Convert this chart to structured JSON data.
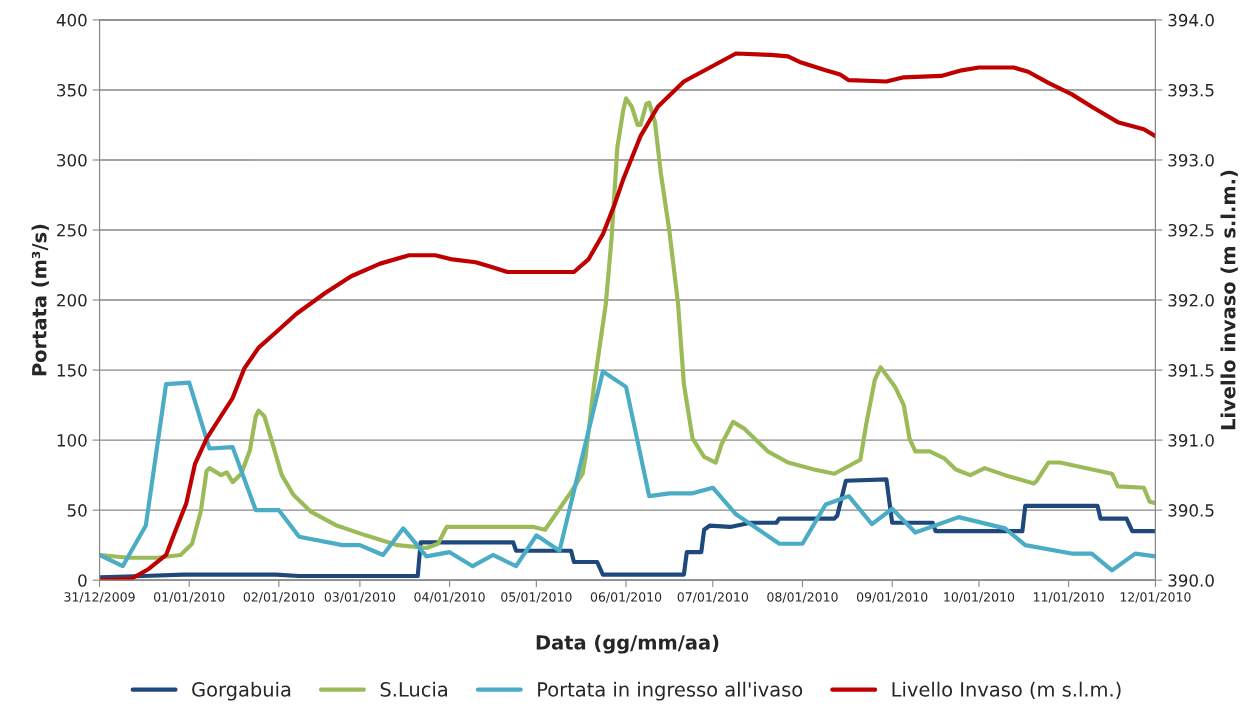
{
  "chart_data": {
    "type": "line",
    "xlabel": "Data (gg/mm/aa)",
    "ylabel": "Portata (m³/s)",
    "y2label": "Livello invaso (m s.l.m.)",
    "xlim": [
      "2009-12-01",
      "2010-12-01"
    ],
    "xticks": [
      {
        "value": "2009-12-01",
        "label": "31/12/2009"
      },
      {
        "value": "2010-01-01",
        "label": "01/01/2010"
      },
      {
        "value": "2010-02-01",
        "label": "02/01/2010"
      },
      {
        "value": "2010-03-01",
        "label": "03/01/2010"
      },
      {
        "value": "2010-04-01",
        "label": "04/01/2010"
      },
      {
        "value": "2010-05-01",
        "label": "05/01/2010"
      },
      {
        "value": "2010-06-01",
        "label": "06/01/2010"
      },
      {
        "value": "2010-07-01",
        "label": "07/01/2010"
      },
      {
        "value": "2010-08-01",
        "label": "08/01/2010"
      },
      {
        "value": "2010-09-01",
        "label": "09/01/2010"
      },
      {
        "value": "2010-10-01",
        "label": "10/01/2010"
      },
      {
        "value": "2010-11-01",
        "label": "11/01/2010"
      },
      {
        "value": "2010-12-01",
        "label": "12/01/2010"
      }
    ],
    "ylim": [
      0,
      400
    ],
    "yticks": [
      0,
      50,
      100,
      150,
      200,
      250,
      300,
      350,
      400
    ],
    "y2lim": [
      390,
      394
    ],
    "y2ticks": [
      {
        "value": 390,
        "label": "390.0"
      },
      {
        "value": 390.5,
        "label": "390.5"
      },
      {
        "value": 391,
        "label": "391.0"
      },
      {
        "value": 391.5,
        "label": "391.5"
      },
      {
        "value": 392,
        "label": "392.0"
      },
      {
        "value": 392.5,
        "label": "392.5"
      },
      {
        "value": 393,
        "label": "393.0"
      },
      {
        "value": 393.5,
        "label": "393.5"
      },
      {
        "value": 394,
        "label": "394.0"
      }
    ],
    "grid": "y",
    "legend": "bottom",
    "marker": "none",
    "line_style": "solid",
    "series": [
      {
        "name": "Gorgabuia",
        "color": "#1f497d",
        "x": [
          "2009-12-01",
          "2009-12-16",
          "2009-12-30",
          "2010-01-31",
          "2010-02-08",
          "2010-03-21",
          "2010-03-22",
          "2010-04-23",
          "2010-04-24",
          "2010-05-13",
          "2010-05-14",
          "2010-05-22",
          "2010-05-24",
          "2010-06-21",
          "2010-06-22",
          "2010-06-27",
          "2010-06-28",
          "2010-06-30",
          "2010-07-07",
          "2010-07-14",
          "2010-07-23",
          "2010-07-24",
          "2010-08-12",
          "2010-08-13",
          "2010-08-16",
          "2010-08-30",
          "2010-09-01",
          "2010-09-15",
          "2010-09-16",
          "2010-10-16",
          "2010-10-17",
          "2010-11-11",
          "2010-11-12",
          "2010-11-21",
          "2010-11-23",
          "2010-12-01"
        ],
        "values": [
          2,
          3,
          4,
          4,
          3,
          3,
          27,
          27,
          21,
          21,
          13,
          13,
          4,
          4,
          20,
          20,
          36,
          39,
          38,
          41,
          41,
          44,
          44,
          46,
          71,
          72,
          41,
          41,
          35,
          35,
          53,
          53,
          44,
          44,
          35,
          35
        ]
      },
      {
        "name": "S.Lucia",
        "color": "#9bbb59",
        "x": [
          "2009-12-01",
          "2009-12-11",
          "2009-12-21",
          "2009-12-29",
          "2010-01-02",
          "2010-01-05",
          "2010-01-07",
          "2010-01-08",
          "2010-01-12",
          "2010-01-14",
          "2010-01-16",
          "2010-01-19",
          "2010-01-22",
          "2010-01-24",
          "2010-01-25",
          "2010-01-27",
          "2010-01-30",
          "2010-02-02",
          "2010-02-06",
          "2010-02-12",
          "2010-02-21",
          "2010-03-03",
          "2010-03-14",
          "2010-03-24",
          "2010-03-28",
          "2010-03-31",
          "2010-04-15",
          "2010-04-30",
          "2010-05-04",
          "2010-05-09",
          "2010-05-13",
          "2010-05-17",
          "2010-05-18",
          "2010-05-21",
          "2010-05-25",
          "2010-05-27",
          "2010-05-29",
          "2010-05-31",
          "2010-06-01",
          "2010-06-03",
          "2010-06-05",
          "2010-06-06",
          "2010-06-08",
          "2010-06-09",
          "2010-06-11",
          "2010-06-13",
          "2010-06-16",
          "2010-06-19",
          "2010-06-21",
          "2010-06-24",
          "2010-06-28",
          "2010-07-02",
          "2010-07-04",
          "2010-07-08",
          "2010-07-12",
          "2010-07-20",
          "2010-07-27",
          "2010-08-05",
          "2010-08-12",
          "2010-08-21",
          "2010-08-23",
          "2010-08-26",
          "2010-08-28",
          "2010-09-02",
          "2010-09-05",
          "2010-09-07",
          "2010-09-09",
          "2010-09-14",
          "2010-09-19",
          "2010-09-23",
          "2010-09-28",
          "2010-10-03",
          "2010-10-10",
          "2010-10-20",
          "2010-10-21",
          "2010-10-25",
          "2010-10-29",
          "2010-11-16",
          "2010-11-18",
          "2010-11-27",
          "2010-11-29",
          "2010-12-01"
        ],
        "values": [
          18,
          16,
          16,
          18,
          26,
          49,
          78,
          80,
          75,
          77,
          70,
          76,
          93,
          117,
          121,
          117,
          96,
          75,
          61,
          49,
          39,
          32,
          25,
          23,
          26,
          38,
          38,
          38,
          36,
          51,
          63,
          76,
          88,
          140,
          197,
          244,
          309,
          335,
          344,
          338,
          325,
          325,
          340,
          341,
          327,
          291,
          249,
          197,
          140,
          101,
          88,
          84,
          97,
          113,
          108,
          92,
          84,
          79,
          76,
          86,
          111,
          143,
          152,
          138,
          125,
          101,
          92,
          92,
          87,
          79,
          75,
          80,
          75,
          69,
          71,
          84,
          84,
          76,
          67,
          66,
          56,
          55
        ]
      },
      {
        "name": "Portata in ingresso all'ivaso",
        "color": "#4bacc6",
        "x": [
          "2009-12-01",
          "2009-12-09",
          "2009-12-17",
          "2009-12-24",
          "2010-01-01",
          "2010-01-08",
          "2010-01-16",
          "2010-01-24",
          "2010-02-01",
          "2010-02-08",
          "2010-02-23",
          "2010-03-01",
          "2010-03-09",
          "2010-03-16",
          "2010-03-24",
          "2010-04-01",
          "2010-04-09",
          "2010-04-16",
          "2010-04-24",
          "2010-05-01",
          "2010-05-09",
          "2010-05-24",
          "2010-06-01",
          "2010-06-09",
          "2010-06-16",
          "2010-06-24",
          "2010-07-01",
          "2010-07-09",
          "2010-07-24",
          "2010-08-01",
          "2010-08-09",
          "2010-08-17",
          "2010-08-25",
          "2010-09-01",
          "2010-09-09",
          "2010-09-24",
          "2010-10-10",
          "2010-10-17",
          "2010-11-02",
          "2010-11-09",
          "2010-11-16",
          "2010-11-24",
          "2010-12-01"
        ],
        "values": [
          18,
          10,
          39,
          140,
          141,
          94,
          95,
          50,
          50,
          31,
          25,
          25,
          18,
          37,
          17,
          20,
          10,
          18,
          10,
          32,
          21,
          149,
          138,
          60,
          62,
          62,
          66,
          47,
          26,
          26,
          54,
          60,
          40,
          51,
          34,
          45,
          37,
          25,
          19,
          19,
          7,
          19,
          17
        ]
      },
      {
        "name": "Livello Invaso (m s.l.m.)",
        "color": "#c00000",
        "axis": "y2",
        "x": [
          "2009-12-01",
          "2009-12-12",
          "2009-12-18",
          "2009-12-24",
          "2009-12-27",
          "2009-12-31",
          "2010-01-03",
          "2010-01-07",
          "2010-01-11",
          "2010-01-16",
          "2010-01-20",
          "2010-01-25",
          "2010-01-31",
          "2010-02-07",
          "2010-02-17",
          "2010-02-26",
          "2010-03-08",
          "2010-03-18",
          "2010-03-27",
          "2010-04-02",
          "2010-04-10",
          "2010-04-15",
          "2010-04-21",
          "2010-05-14",
          "2010-05-19",
          "2010-05-24",
          "2010-05-28",
          "2010-05-31",
          "2010-06-06",
          "2010-06-12",
          "2010-06-21",
          "2010-06-30",
          "2010-07-09",
          "2010-07-21",
          "2010-07-27",
          "2010-07-31",
          "2010-08-09",
          "2010-08-14",
          "2010-08-17",
          "2010-08-30",
          "2010-09-05",
          "2010-09-18",
          "2010-09-25",
          "2010-10-01",
          "2010-10-13",
          "2010-10-18",
          "2010-10-25",
          "2010-11-02",
          "2010-11-09",
          "2010-11-18",
          "2010-11-27",
          "2010-12-01"
        ],
        "values": [
          390.0,
          390.01,
          390.08,
          390.18,
          390.34,
          390.55,
          390.83,
          391.01,
          391.14,
          391.3,
          391.51,
          391.66,
          391.77,
          391.9,
          392.05,
          392.17,
          392.26,
          392.32,
          392.32,
          392.29,
          392.27,
          392.24,
          392.2,
          392.2,
          392.29,
          392.47,
          392.68,
          392.86,
          393.17,
          393.38,
          393.56,
          393.66,
          393.76,
          393.75,
          393.74,
          393.7,
          393.64,
          393.61,
          393.57,
          393.56,
          393.59,
          393.6,
          393.64,
          393.66,
          393.66,
          393.63,
          393.55,
          393.47,
          393.38,
          393.27,
          393.22,
          393.17
        ]
      }
    ]
  }
}
